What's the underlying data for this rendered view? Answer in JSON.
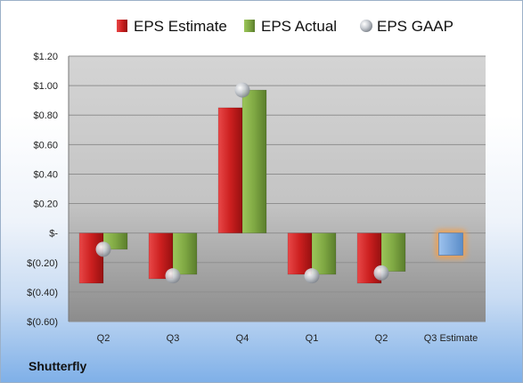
{
  "company": "Shutterfly",
  "chart_data": {
    "type": "bar",
    "categories": [
      "Q2",
      "Q3",
      "Q4",
      "Q1",
      "Q2",
      "Q3 Estimate"
    ],
    "series": [
      {
        "name": "EPS Estimate",
        "color": "#cc1f1f",
        "values": [
          -0.34,
          -0.31,
          0.85,
          -0.28,
          -0.34,
          null
        ]
      },
      {
        "name": "EPS Actual",
        "color": "#7fa843",
        "values": [
          -0.11,
          -0.28,
          0.97,
          -0.28,
          -0.26,
          null
        ]
      },
      {
        "name": "EPS GAAP",
        "color": "#aab0b8",
        "marker": "sphere",
        "values": [
          -0.11,
          -0.29,
          0.97,
          -0.29,
          -0.27,
          null
        ]
      }
    ],
    "forecast": {
      "category": "Q3 Estimate",
      "value": -0.15,
      "color": "#6f9fd8",
      "glow": "#f0a050"
    },
    "ylim": [
      -0.6,
      1.2
    ],
    "yticks": [
      -0.6,
      -0.4,
      -0.2,
      0,
      0.2,
      0.4,
      0.6,
      0.8,
      1.0,
      1.2
    ],
    "ytick_labels": [
      "$(0.60)",
      "$(0.40)",
      "$(0.20)",
      "$-",
      "$0.20",
      "$0.40",
      "$0.60",
      "$0.80",
      "$1.00",
      "$1.20"
    ],
    "grid": true,
    "legend": "top"
  }
}
